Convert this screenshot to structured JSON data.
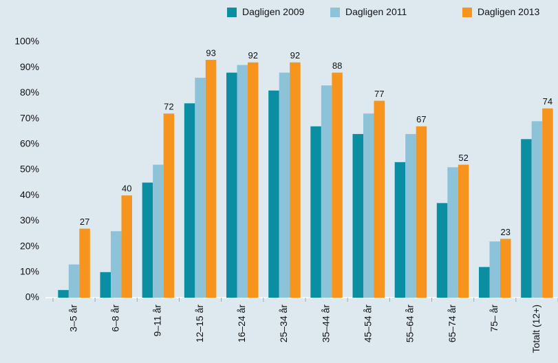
{
  "chart_data": {
    "type": "bar",
    "categories": [
      "3–5 år",
      "6–8 år",
      "9–11 år",
      "12–15 år",
      "16–24 år",
      "25–34 år",
      "35–44 år",
      "45–54 år",
      "55–64 år",
      "65–74 år",
      "75– år",
      "Totalt (12+)"
    ],
    "series": [
      {
        "name": "Dagligen 2009",
        "color": "#0b8ea2",
        "values": [
          3,
          10,
          45,
          76,
          88,
          81,
          67,
          64,
          53,
          37,
          12,
          62
        ]
      },
      {
        "name": "Dagligen 2011",
        "color": "#8dc3d9",
        "values": [
          13,
          26,
          52,
          86,
          91,
          88,
          83,
          72,
          64,
          51,
          22,
          69
        ]
      },
      {
        "name": "Dagligen 2013",
        "color": "#f7941e",
        "values": [
          27,
          40,
          72,
          93,
          92,
          92,
          88,
          77,
          67,
          52,
          23,
          74
        ],
        "labeled": true
      }
    ],
    "ylim": [
      0,
      100
    ],
    "yticks": [
      {
        "value": 0,
        "label": "0%"
      },
      {
        "value": 10,
        "label": "10%"
      },
      {
        "value": 20,
        "label": "20%"
      },
      {
        "value": 30,
        "label": "30%"
      },
      {
        "value": 40,
        "label": "40%"
      },
      {
        "value": 50,
        "label": "50%"
      },
      {
        "value": 60,
        "label": "60%"
      },
      {
        "value": 70,
        "label": "70%"
      },
      {
        "value": 80,
        "label": "80%"
      },
      {
        "value": 90,
        "label": "90%"
      },
      {
        "value": 100,
        "label": "100%"
      }
    ],
    "grid": false,
    "legend": "top-right"
  }
}
